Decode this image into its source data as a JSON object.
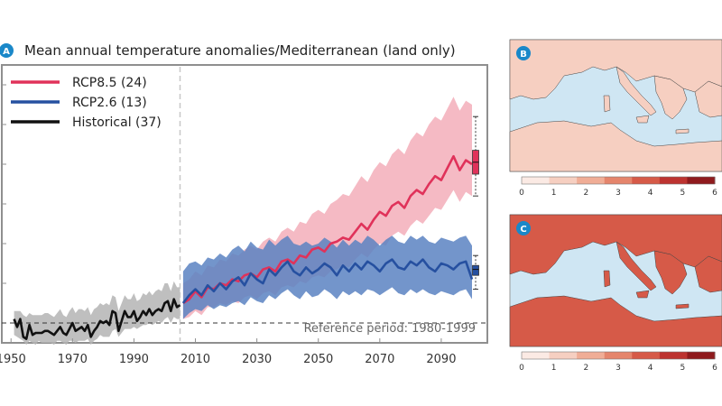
{
  "panels": {
    "a": {
      "letter": "A",
      "title": "Mean annual temperature anomalies/Mediterranean (land only)"
    },
    "b": {
      "letter": "B",
      "colorbar_ticks": [
        "0",
        "1",
        "2",
        "3",
        "4",
        "5",
        "6"
      ]
    },
    "c": {
      "letter": "C",
      "colorbar_ticks": [
        "0",
        "1",
        "2",
        "3",
        "4",
        "5",
        "6"
      ]
    }
  },
  "colors": {
    "rcp85": "#e0325a",
    "rcp85_band": "#f3a9b5",
    "rcp26": "#2650a0",
    "rcp26_band": "#5b82c2",
    "historical": "#111111",
    "historical_band": "#b4b4b4",
    "sea": "#cfe6f3"
  },
  "chart_data": [
    {
      "type": "line",
      "title": "Mean annual temperature anomalies/Mediterranean (land only)",
      "xlabel": "",
      "ylabel": "",
      "xlim": [
        1947,
        2105
      ],
      "ylim": [
        -0.5,
        6.5
      ],
      "x_ticks": [
        1950,
        1970,
        1990,
        2010,
        2030,
        2050,
        2070,
        2090
      ],
      "reference_line": {
        "year": 2005,
        "style": "dashed vertical"
      },
      "zero_line": {
        "value": 0,
        "style": "dashed horizontal"
      },
      "annotation": "Reference period: 1980-1999",
      "legend": {
        "position": "top-left",
        "entries": [
          "RCP8.5 (24)",
          "RCP2.6 (13)",
          "Historical (37)"
        ]
      },
      "series": [
        {
          "name": "Historical (37)",
          "x": [
            1951,
            1952,
            1953,
            1954,
            1955,
            1956,
            1957,
            1958,
            1959,
            1960,
            1961,
            1962,
            1963,
            1964,
            1965,
            1966,
            1967,
            1968,
            1969,
            1970,
            1971,
            1972,
            1973,
            1974,
            1975,
            1976,
            1977,
            1978,
            1979,
            1980,
            1981,
            1982,
            1983,
            1984,
            1985,
            1986,
            1987,
            1988,
            1989,
            1990,
            1991,
            1992,
            1993,
            1994,
            1995,
            1996,
            1997,
            1998,
            1999,
            2000,
            2001,
            2002,
            2003,
            2004,
            2005
          ],
          "y": [
            0.1,
            -0.1,
            0.1,
            -0.35,
            -0.4,
            -0.05,
            -0.3,
            -0.25,
            -0.25,
            -0.25,
            -0.2,
            -0.2,
            -0.25,
            -0.3,
            -0.2,
            -0.1,
            -0.25,
            -0.3,
            -0.15,
            0.0,
            -0.2,
            -0.15,
            -0.1,
            -0.2,
            -0.05,
            -0.35,
            -0.2,
            -0.1,
            0.05,
            0.0,
            0.05,
            -0.05,
            0.3,
            0.25,
            -0.2,
            0.05,
            0.3,
            0.15,
            0.15,
            0.3,
            0.05,
            0.15,
            0.3,
            0.2,
            0.35,
            0.2,
            0.3,
            0.35,
            0.3,
            0.5,
            0.55,
            0.3,
            0.6,
            0.4,
            0.45
          ],
          "band_low": [
            -0.3,
            -0.35,
            -0.4,
            -0.45,
            -0.55,
            -0.45,
            -0.5,
            -0.55,
            -0.45,
            -0.5,
            -0.5,
            -0.5,
            -0.5,
            -0.55,
            -0.45,
            -0.45,
            -0.5,
            -0.55,
            -0.45,
            -0.45,
            -0.5,
            -0.45,
            -0.45,
            -0.45,
            -0.4,
            -0.55,
            -0.45,
            -0.4,
            -0.3,
            -0.35,
            -0.35,
            -0.35,
            -0.2,
            -0.15,
            -0.35,
            -0.25,
            -0.15,
            -0.15,
            -0.15,
            -0.1,
            -0.15,
            -0.1,
            -0.05,
            -0.05,
            0.0,
            -0.05,
            0.0,
            0.05,
            0.0,
            0.1,
            0.15,
            0.0,
            0.15,
            0.1,
            0.1
          ],
          "band_high": [
            0.3,
            0.3,
            0.3,
            0.2,
            0.15,
            0.25,
            0.2,
            0.2,
            0.2,
            0.2,
            0.25,
            0.25,
            0.2,
            0.15,
            0.25,
            0.35,
            0.2,
            0.15,
            0.3,
            0.4,
            0.25,
            0.35,
            0.35,
            0.3,
            0.4,
            0.2,
            0.35,
            0.4,
            0.5,
            0.45,
            0.5,
            0.45,
            0.7,
            0.65,
            0.3,
            0.5,
            0.7,
            0.6,
            0.6,
            0.75,
            0.55,
            0.6,
            0.75,
            0.7,
            0.8,
            0.7,
            0.8,
            0.85,
            0.8,
            1.0,
            1.0,
            0.8,
            1.05,
            0.9,
            0.9
          ]
        },
        {
          "name": "RCP2.6 (13)",
          "x": [
            2006,
            2008,
            2010,
            2012,
            2014,
            2016,
            2018,
            2020,
            2022,
            2024,
            2026,
            2028,
            2030,
            2032,
            2034,
            2036,
            2038,
            2040,
            2042,
            2044,
            2046,
            2048,
            2050,
            2052,
            2054,
            2056,
            2058,
            2060,
            2062,
            2064,
            2066,
            2068,
            2070,
            2072,
            2074,
            2076,
            2078,
            2080,
            2082,
            2084,
            2086,
            2088,
            2090,
            2092,
            2094,
            2096,
            2098,
            2100
          ],
          "y": [
            0.5,
            0.7,
            0.85,
            0.7,
            0.95,
            0.8,
            1.0,
            0.85,
            1.05,
            1.15,
            0.95,
            1.25,
            1.1,
            1.0,
            1.35,
            1.2,
            1.4,
            1.55,
            1.3,
            1.2,
            1.4,
            1.25,
            1.35,
            1.5,
            1.4,
            1.2,
            1.45,
            1.3,
            1.5,
            1.35,
            1.55,
            1.45,
            1.3,
            1.5,
            1.6,
            1.4,
            1.35,
            1.55,
            1.45,
            1.6,
            1.4,
            1.3,
            1.5,
            1.45,
            1.35,
            1.5,
            1.55,
            1.1
          ],
          "band_low": [
            0.1,
            0.25,
            0.35,
            0.3,
            0.45,
            0.35,
            0.45,
            0.4,
            0.5,
            0.55,
            0.45,
            0.65,
            0.55,
            0.5,
            0.7,
            0.6,
            0.75,
            0.85,
            0.7,
            0.6,
            0.8,
            0.65,
            0.7,
            0.85,
            0.75,
            0.6,
            0.8,
            0.7,
            0.8,
            0.7,
            0.85,
            0.8,
            0.7,
            0.8,
            0.9,
            0.75,
            0.7,
            0.85,
            0.75,
            0.85,
            0.75,
            0.7,
            0.8,
            0.75,
            0.7,
            0.8,
            0.85,
            0.6
          ],
          "band_high": [
            1.3,
            1.5,
            1.55,
            1.45,
            1.65,
            1.6,
            1.75,
            1.65,
            1.85,
            1.95,
            1.8,
            2.05,
            1.9,
            1.85,
            2.1,
            1.95,
            2.1,
            2.2,
            2.0,
            1.95,
            2.05,
            1.95,
            2.0,
            2.15,
            2.05,
            1.9,
            2.1,
            1.95,
            2.1,
            2.0,
            2.2,
            2.1,
            1.95,
            2.1,
            2.2,
            2.05,
            2.0,
            2.2,
            2.1,
            2.2,
            2.05,
            2.0,
            2.15,
            2.1,
            2.05,
            2.15,
            2.2,
            1.95
          ]
        },
        {
          "name": "RCP8.5 (24)",
          "x": [
            2006,
            2008,
            2010,
            2012,
            2014,
            2016,
            2018,
            2020,
            2022,
            2024,
            2026,
            2028,
            2030,
            2032,
            2034,
            2036,
            2038,
            2040,
            2042,
            2044,
            2046,
            2048,
            2050,
            2052,
            2054,
            2056,
            2058,
            2060,
            2062,
            2064,
            2066,
            2068,
            2070,
            2072,
            2074,
            2076,
            2078,
            2080,
            2082,
            2084,
            2086,
            2088,
            2090,
            2092,
            2094,
            2096,
            2098,
            2100
          ],
          "y": [
            0.5,
            0.6,
            0.8,
            0.65,
            0.9,
            0.85,
            1.0,
            0.95,
            1.1,
            1.05,
            1.2,
            1.25,
            1.15,
            1.35,
            1.4,
            1.3,
            1.55,
            1.6,
            1.5,
            1.7,
            1.65,
            1.85,
            1.9,
            1.8,
            2.0,
            2.05,
            2.15,
            2.1,
            2.3,
            2.5,
            2.35,
            2.6,
            2.8,
            2.7,
            2.95,
            3.05,
            2.9,
            3.2,
            3.35,
            3.25,
            3.5,
            3.7,
            3.6,
            3.9,
            4.2,
            3.85,
            4.1,
            4.0
          ],
          "band_low": [
            0.1,
            0.15,
            0.3,
            0.2,
            0.4,
            0.4,
            0.5,
            0.45,
            0.55,
            0.5,
            0.65,
            0.7,
            0.6,
            0.75,
            0.8,
            0.7,
            0.9,
            0.95,
            0.9,
            1.05,
            1.0,
            1.15,
            1.2,
            1.15,
            1.3,
            1.35,
            1.45,
            1.4,
            1.6,
            1.75,
            1.65,
            1.85,
            2.0,
            1.95,
            2.2,
            2.3,
            2.2,
            2.45,
            2.6,
            2.5,
            2.7,
            2.9,
            2.85,
            3.1,
            3.35,
            3.05,
            3.3,
            3.2
          ],
          "band_high": [
            1.0,
            1.1,
            1.3,
            1.2,
            1.45,
            1.4,
            1.6,
            1.55,
            1.75,
            1.7,
            1.85,
            1.95,
            1.85,
            2.05,
            2.15,
            2.05,
            2.3,
            2.4,
            2.3,
            2.55,
            2.5,
            2.75,
            2.85,
            2.75,
            3.0,
            3.1,
            3.25,
            3.2,
            3.45,
            3.7,
            3.55,
            3.85,
            4.05,
            3.95,
            4.25,
            4.4,
            4.25,
            4.6,
            4.8,
            4.7,
            5.0,
            5.2,
            5.1,
            5.4,
            5.7,
            5.35,
            5.6,
            5.5
          ]
        }
      ],
      "boxplots": [
        {
          "name": "RCP8.5 (24)",
          "min": 3.2,
          "q1": 3.75,
          "median": 4.05,
          "q3": 4.35,
          "max": 5.2
        },
        {
          "name": "RCP2.6 (13)",
          "min": 0.85,
          "q1": 1.2,
          "median": 1.35,
          "q3": 1.45,
          "max": 1.7
        }
      ]
    },
    {
      "type": "heatmap",
      "panel": "B",
      "colorbar": {
        "ticks": [
          0,
          1,
          2,
          3,
          4,
          5,
          6
        ],
        "colors": [
          "#fbeae4",
          "#f6cfc1",
          "#f0ad96",
          "#e5856c",
          "#d65a48",
          "#bd3330",
          "#8f1a1d"
        ]
      },
      "land_level": 1.3
    },
    {
      "type": "heatmap",
      "panel": "C",
      "colorbar": {
        "ticks": [
          0,
          1,
          2,
          3,
          4,
          5,
          6
        ],
        "colors": [
          "#fbeae4",
          "#f6cfc1",
          "#f0ad96",
          "#e5856c",
          "#d65a48",
          "#bd3330",
          "#8f1a1d"
        ]
      },
      "land_level": 4.6
    }
  ]
}
